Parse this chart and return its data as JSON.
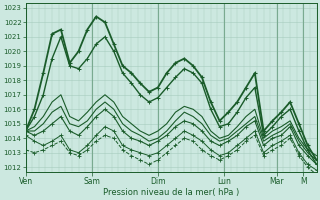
{
  "xlabel": "Pression niveau de la mer( hPa )",
  "bg_color": "#cce8e0",
  "grid_color": "#a8ccbe",
  "line_color": "#1a5c2a",
  "ylim": [
    1012,
    1023
  ],
  "yticks": [
    1012,
    1013,
    1014,
    1015,
    1016,
    1017,
    1018,
    1019,
    1020,
    1021,
    1022,
    1023
  ],
  "day_labels": [
    "Ven",
    "Sam",
    "Dim",
    "Lun",
    "Mar",
    "M"
  ],
  "day_positions": [
    0,
    60,
    120,
    180,
    228,
    252
  ],
  "total_hours": 264,
  "series": [
    [
      1014.5,
      1016.0,
      1018.5,
      1021.2,
      1021.5,
      1019.2,
      1020.0,
      1021.5,
      1022.4,
      1022.0,
      1020.5,
      1019.0,
      1018.5,
      1017.8,
      1017.2,
      1017.5,
      1018.5,
      1019.2,
      1019.5,
      1019.0,
      1018.2,
      1016.5,
      1015.2,
      1015.8,
      1016.5,
      1017.5,
      1018.5,
      1014.5,
      1015.2,
      1015.8,
      1016.5,
      1015.0,
      1013.5,
      1012.5
    ],
    [
      1014.5,
      1015.5,
      1017.0,
      1019.5,
      1021.0,
      1019.0,
      1018.8,
      1019.5,
      1020.5,
      1021.0,
      1020.0,
      1018.5,
      1017.8,
      1017.0,
      1016.5,
      1016.8,
      1017.5,
      1018.2,
      1018.8,
      1018.5,
      1017.8,
      1016.0,
      1014.8,
      1015.0,
      1015.8,
      1016.8,
      1017.5,
      1014.2,
      1014.8,
      1015.5,
      1016.0,
      1014.5,
      1013.2,
      1012.2
    ],
    [
      1014.5,
      1014.8,
      1015.5,
      1016.5,
      1017.0,
      1015.5,
      1015.2,
      1015.8,
      1016.5,
      1017.0,
      1016.5,
      1015.5,
      1015.0,
      1014.5,
      1014.2,
      1014.5,
      1015.0,
      1015.8,
      1016.2,
      1016.0,
      1015.5,
      1014.5,
      1014.0,
      1014.2,
      1014.8,
      1015.5,
      1016.0,
      1014.0,
      1014.5,
      1014.8,
      1015.2,
      1014.0,
      1013.2,
      1012.8
    ],
    [
      1014.5,
      1014.5,
      1015.0,
      1015.8,
      1016.2,
      1015.0,
      1014.8,
      1015.2,
      1016.0,
      1016.5,
      1016.0,
      1015.0,
      1014.5,
      1014.2,
      1013.8,
      1014.0,
      1014.5,
      1015.2,
      1015.8,
      1015.5,
      1015.0,
      1014.2,
      1013.8,
      1014.0,
      1014.5,
      1015.0,
      1015.5,
      1013.8,
      1014.2,
      1014.5,
      1015.0,
      1013.8,
      1013.0,
      1012.5
    ],
    [
      1014.5,
      1014.2,
      1014.5,
      1015.0,
      1015.5,
      1014.5,
      1014.2,
      1014.8,
      1015.5,
      1016.0,
      1015.5,
      1014.5,
      1014.0,
      1013.8,
      1013.5,
      1013.8,
      1014.2,
      1014.8,
      1015.2,
      1015.0,
      1014.5,
      1013.8,
      1013.5,
      1013.8,
      1014.2,
      1014.8,
      1015.2,
      1013.5,
      1014.0,
      1014.2,
      1014.8,
      1013.5,
      1012.8,
      1012.2
    ],
    [
      1014.2,
      1013.8,
      1013.5,
      1013.8,
      1014.2,
      1013.2,
      1013.0,
      1013.5,
      1014.2,
      1014.8,
      1014.5,
      1013.5,
      1013.2,
      1013.0,
      1012.8,
      1013.0,
      1013.5,
      1014.0,
      1014.5,
      1014.2,
      1013.8,
      1013.2,
      1012.8,
      1013.0,
      1013.5,
      1014.0,
      1014.5,
      1013.0,
      1013.5,
      1013.8,
      1014.2,
      1013.0,
      1012.2,
      1011.8
    ],
    [
      1013.2,
      1013.0,
      1013.2,
      1013.5,
      1013.8,
      1013.0,
      1012.8,
      1013.2,
      1013.8,
      1014.2,
      1014.0,
      1013.2,
      1012.8,
      1012.5,
      1012.2,
      1012.5,
      1013.0,
      1013.5,
      1014.0,
      1013.8,
      1013.2,
      1012.8,
      1012.5,
      1012.8,
      1013.2,
      1013.8,
      1014.2,
      1012.8,
      1013.2,
      1013.5,
      1014.0,
      1012.8,
      1012.0,
      1011.5
    ]
  ],
  "marker_series": [
    0,
    1,
    4,
    5,
    6
  ],
  "dashed_series": [
    6
  ]
}
